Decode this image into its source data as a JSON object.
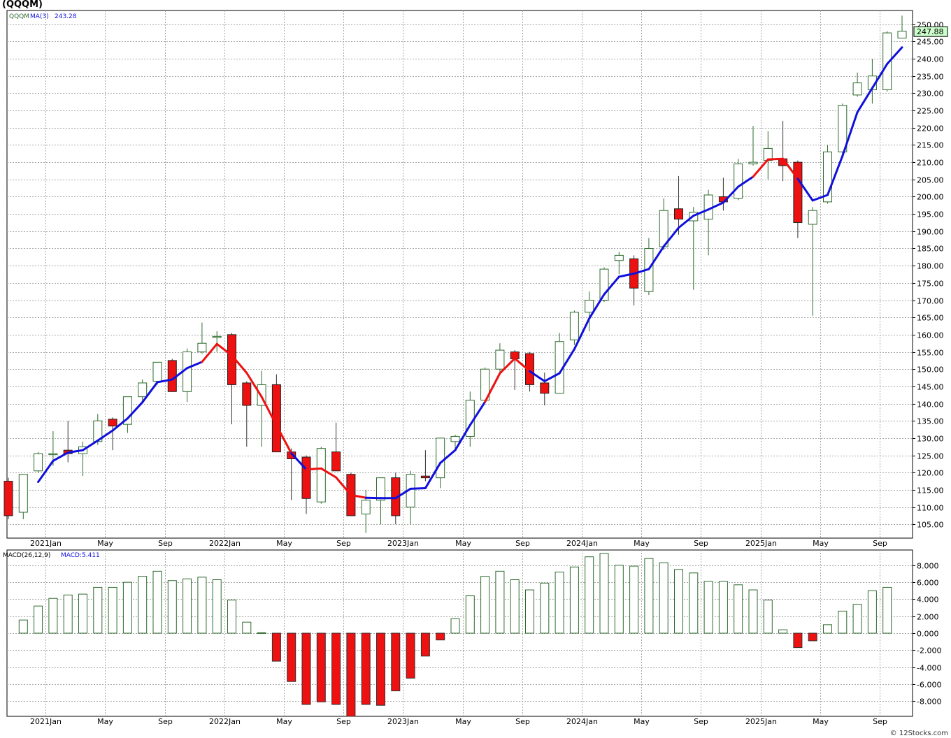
{
  "title": "(QQQM)",
  "credit": "© 12Stocks.com",
  "colors": {
    "up_border": "#2e6b2e",
    "down_fill": "#ee1111",
    "ma_up": "#1010dd",
    "ma_down": "#ee1111",
    "grid": "#a9a9a9",
    "macd_pos": "#2e6b2e",
    "macd_neg": "#ee1111",
    "price_box": "#ccffcc"
  },
  "chart_data": [
    {
      "type": "candlestick",
      "legend": {
        "symbol": "QQQM",
        "ma_label": "MA(3)",
        "ma_value": "243.28"
      },
      "last_price_label": "247.88",
      "ylim": [
        101,
        254
      ],
      "y_ticks": [
        "105.00",
        "110.00",
        "115.00",
        "120.00",
        "125.00",
        "130.00",
        "135.00",
        "140.00",
        "145.00",
        "150.00",
        "155.00",
        "160.00",
        "165.00",
        "170.00",
        "175.00",
        "180.00",
        "185.00",
        "190.00",
        "195.00",
        "200.00",
        "205.00",
        "210.00",
        "215.00",
        "220.00",
        "225.00",
        "230.00",
        "235.00",
        "240.00",
        "245.00",
        "250.00"
      ],
      "x_labels": [
        {
          "i": 3,
          "label": "2021Jan"
        },
        {
          "i": 7,
          "label": "May"
        },
        {
          "i": 11,
          "label": "Sep"
        },
        {
          "i": 15,
          "label": "2022Jan"
        },
        {
          "i": 19,
          "label": "May"
        },
        {
          "i": 23,
          "label": "Sep"
        },
        {
          "i": 27,
          "label": "2023Jan"
        },
        {
          "i": 31,
          "label": "May"
        },
        {
          "i": 35,
          "label": "Sep"
        },
        {
          "i": 39,
          "label": "2024Jan"
        },
        {
          "i": 43,
          "label": "May"
        },
        {
          "i": 47,
          "label": "Sep"
        },
        {
          "i": 51,
          "label": "2025Jan"
        },
        {
          "i": 55,
          "label": "May"
        },
        {
          "i": 59,
          "label": "Sep"
        }
      ],
      "candles": [
        {
          "o": 117.5,
          "h": 118.5,
          "l": 106.5,
          "c": 107.5
        },
        {
          "o": 108.5,
          "h": 119.5,
          "l": 106.5,
          "c": 119.5
        },
        {
          "o": 120.5,
          "h": 126.0,
          "l": 120.0,
          "c": 125.5
        },
        {
          "o": 125.5,
          "h": 132.0,
          "l": 122.0,
          "c": 125.5
        },
        {
          "o": 126.5,
          "h": 135.0,
          "l": 123.0,
          "c": 125.5
        },
        {
          "o": 125.5,
          "h": 129.0,
          "l": 119.0,
          "c": 127.5
        },
        {
          "o": 129.0,
          "h": 137.0,
          "l": 128.0,
          "c": 135.0
        },
        {
          "o": 135.5,
          "h": 136.0,
          "l": 126.5,
          "c": 133.5
        },
        {
          "o": 134.0,
          "h": 142.0,
          "l": 131.5,
          "c": 142.0
        },
        {
          "o": 142.0,
          "h": 147.0,
          "l": 140.5,
          "c": 146.0
        },
        {
          "o": 146.5,
          "h": 152.0,
          "l": 145.5,
          "c": 152.0
        },
        {
          "o": 152.5,
          "h": 153.0,
          "l": 143.5,
          "c": 143.5
        },
        {
          "o": 143.5,
          "h": 156.0,
          "l": 140.5,
          "c": 155.0
        },
        {
          "o": 155.0,
          "h": 163.5,
          "l": 154.5,
          "c": 157.5
        },
        {
          "o": 159.5,
          "h": 161.0,
          "l": 155.0,
          "c": 159.5
        },
        {
          "o": 160.0,
          "h": 160.5,
          "l": 134.0,
          "c": 145.5
        },
        {
          "o": 146.0,
          "h": 146.5,
          "l": 127.5,
          "c": 139.5
        },
        {
          "o": 139.5,
          "h": 149.5,
          "l": 127.5,
          "c": 145.5
        },
        {
          "o": 145.5,
          "h": 148.5,
          "l": 126.0,
          "c": 126.0
        },
        {
          "o": 126.0,
          "h": 127.0,
          "l": 112.0,
          "c": 124.0
        },
        {
          "o": 124.5,
          "h": 125.0,
          "l": 108.0,
          "c": 112.5
        },
        {
          "o": 111.5,
          "h": 127.5,
          "l": 111.0,
          "c": 127.0
        },
        {
          "o": 126.0,
          "h": 134.5,
          "l": 121.0,
          "c": 120.5
        },
        {
          "o": 119.5,
          "h": 120.0,
          "l": 107.5,
          "c": 107.5
        },
        {
          "o": 108.0,
          "h": 115.0,
          "l": 102.5,
          "c": 112.0
        },
        {
          "o": 112.0,
          "h": 118.5,
          "l": 105.0,
          "c": 118.5
        },
        {
          "o": 118.5,
          "h": 120.0,
          "l": 105.0,
          "c": 107.5
        },
        {
          "o": 110.0,
          "h": 120.5,
          "l": 105.0,
          "c": 119.5
        },
        {
          "o": 119.0,
          "h": 126.5,
          "l": 117.5,
          "c": 118.5
        },
        {
          "o": 118.5,
          "h": 130.0,
          "l": 115.5,
          "c": 130.0
        },
        {
          "o": 129.0,
          "h": 131.0,
          "l": 126.5,
          "c": 130.5
        },
        {
          "o": 130.5,
          "h": 143.5,
          "l": 127.5,
          "c": 141.0
        },
        {
          "o": 141.0,
          "h": 150.5,
          "l": 140.5,
          "c": 150.0
        },
        {
          "o": 150.0,
          "h": 157.5,
          "l": 149.0,
          "c": 155.5
        },
        {
          "o": 155.0,
          "h": 155.5,
          "l": 144.0,
          "c": 153.0
        },
        {
          "o": 154.5,
          "h": 155.0,
          "l": 143.5,
          "c": 145.5
        },
        {
          "o": 146.0,
          "h": 149.0,
          "l": 139.5,
          "c": 143.0
        },
        {
          "o": 143.0,
          "h": 160.5,
          "l": 143.0,
          "c": 158.0
        },
        {
          "o": 158.5,
          "h": 167.0,
          "l": 157.0,
          "c": 166.5
        },
        {
          "o": 166.5,
          "h": 172.5,
          "l": 161.0,
          "c": 170.0
        },
        {
          "o": 170.0,
          "h": 179.5,
          "l": 169.5,
          "c": 179.0
        },
        {
          "o": 181.5,
          "h": 184.0,
          "l": 177.5,
          "c": 183.0
        },
        {
          "o": 182.0,
          "h": 183.0,
          "l": 168.5,
          "c": 173.5
        },
        {
          "o": 172.5,
          "h": 188.0,
          "l": 171.5,
          "c": 185.0
        },
        {
          "o": 185.5,
          "h": 199.5,
          "l": 184.5,
          "c": 196.0
        },
        {
          "o": 196.5,
          "h": 206.0,
          "l": 189.0,
          "c": 193.5
        },
        {
          "o": 193.0,
          "h": 197.0,
          "l": 173.0,
          "c": 195.5
        },
        {
          "o": 193.5,
          "h": 202.0,
          "l": 183.0,
          "c": 200.5
        },
        {
          "o": 200.0,
          "h": 205.5,
          "l": 196.0,
          "c": 198.5
        },
        {
          "o": 199.5,
          "h": 211.0,
          "l": 199.0,
          "c": 209.5
        },
        {
          "o": 209.5,
          "h": 220.5,
          "l": 209.0,
          "c": 210.0
        },
        {
          "o": 210.5,
          "h": 219.0,
          "l": 205.0,
          "c": 214.0
        },
        {
          "o": 211.0,
          "h": 222.0,
          "l": 204.5,
          "c": 209.0
        },
        {
          "o": 210.0,
          "h": 210.5,
          "l": 188.0,
          "c": 192.5
        },
        {
          "o": 192.0,
          "h": 197.0,
          "l": 165.5,
          "c": 196.0
        },
        {
          "o": 198.5,
          "h": 215.0,
          "l": 198.0,
          "c": 213.0
        },
        {
          "o": 213.0,
          "h": 227.0,
          "l": 212.5,
          "c": 226.5
        },
        {
          "o": 229.5,
          "h": 236.0,
          "l": 229.0,
          "c": 233.0
        },
        {
          "o": 231.0,
          "h": 240.0,
          "l": 227.0,
          "c": 235.0
        },
        {
          "o": 231.0,
          "h": 248.0,
          "l": 230.5,
          "c": 247.5
        },
        {
          "o": 246.0,
          "h": 252.5,
          "l": 246.0,
          "c": 248.0
        }
      ],
      "ma_start_index": 2,
      "ma": [
        117.3,
        123.4,
        125.8,
        126.5,
        129.3,
        132.2,
        135.7,
        140.4,
        146.2,
        147.0,
        150.3,
        152.1,
        157.3,
        154.0,
        148.9,
        142.0,
        133.7,
        125.6,
        120.9,
        121.2,
        118.6,
        113.5,
        112.7,
        112.6,
        112.6,
        115.3,
        115.5,
        122.8,
        126.5,
        133.8,
        140.5,
        148.8,
        153.1,
        149.4,
        146.5,
        148.8,
        155.8,
        164.7,
        171.7,
        176.8,
        177.7,
        179.0,
        185.6,
        191.0,
        194.5,
        196.3,
        198.3,
        202.9,
        205.8,
        210.8,
        211.0,
        205.2,
        198.9,
        200.5,
        211.8,
        224.5,
        231.5,
        238.5,
        243.3
      ],
      "ma_color_flags": [
        0,
        0,
        0,
        0,
        0,
        0,
        0,
        0,
        0,
        0,
        0,
        0,
        1,
        1,
        1,
        1,
        1,
        1,
        0,
        1,
        1,
        1,
        1,
        0,
        0,
        0,
        0,
        0,
        0,
        0,
        0,
        1,
        1,
        1,
        0,
        0,
        0,
        0,
        0,
        0,
        0,
        0,
        0,
        0,
        0,
        0,
        0,
        0,
        0,
        1,
        1,
        1,
        0,
        0,
        0,
        0,
        0,
        0,
        0
      ]
    },
    {
      "type": "bar",
      "name": "MACD(26,12,9)",
      "legend": {
        "label": "MACD(26,12,9)",
        "value_label": "MACD:5.411"
      },
      "ylim": [
        -9.8,
        9.8
      ],
      "y_ticks": [
        "8.000",
        "6.000",
        "4.000",
        "2.000",
        "0.000",
        "-2.000",
        "-4.000",
        "-6.000",
        "-8.000"
      ],
      "values": [
        1.55,
        3.2,
        4.1,
        4.5,
        4.6,
        5.4,
        5.4,
        6.0,
        6.7,
        7.3,
        6.2,
        6.4,
        6.6,
        6.3,
        3.9,
        1.3,
        0.05,
        -3.3,
        -5.7,
        -8.4,
        -8.1,
        -8.4,
        -9.8,
        -8.4,
        -8.5,
        -6.8,
        -5.3,
        -2.7,
        -0.8,
        1.7,
        4.4,
        6.7,
        7.3,
        6.3,
        5.1,
        5.9,
        7.2,
        7.8,
        9.0,
        9.4,
        8.0,
        7.9,
        8.8,
        8.3,
        7.5,
        7.1,
        6.1,
        6.1,
        5.7,
        5.1,
        3.9,
        0.4,
        -1.7,
        -0.9,
        1.0,
        2.6,
        3.4,
        5.0,
        5.4
      ]
    }
  ]
}
